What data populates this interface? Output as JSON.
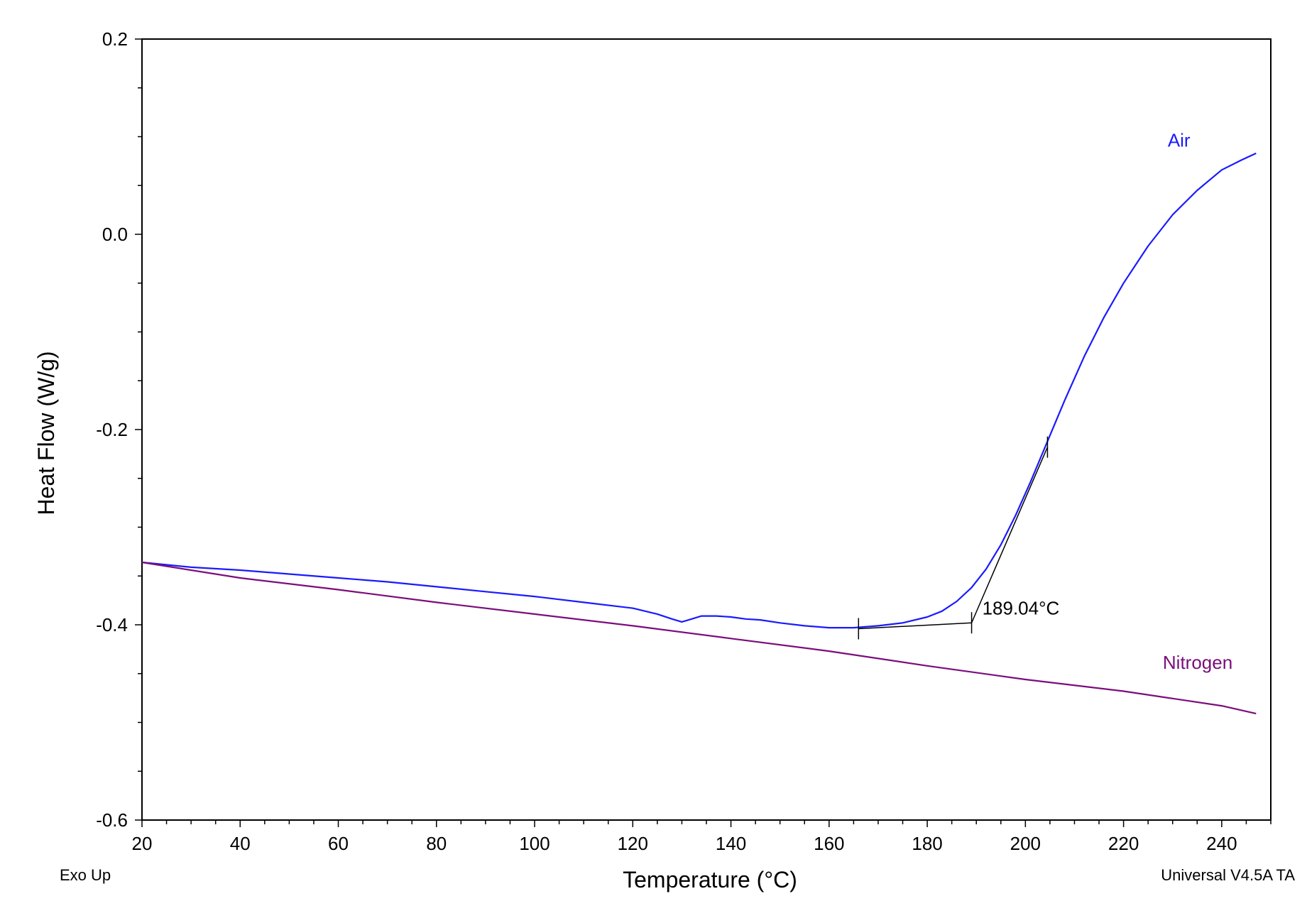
{
  "chart_data": {
    "type": "line",
    "xlabel": "Temperature (°C)",
    "ylabel": "Heat Flow (W/g)",
    "xlim": [
      20,
      250
    ],
    "ylim": [
      -0.6,
      0.2
    ],
    "x_ticks": [
      20,
      40,
      60,
      80,
      100,
      120,
      140,
      160,
      180,
      200,
      220,
      240
    ],
    "x_tick_labels": [
      "20",
      "40",
      "60",
      "80",
      "100",
      "120",
      "140",
      "160",
      "180",
      "200",
      "220",
      "240"
    ],
    "y_ticks": [
      0.2,
      0.0,
      -0.2,
      -0.4,
      -0.6
    ],
    "y_tick_labels": [
      "0.2",
      "0.0",
      "-0.2",
      "-0.4",
      "-0.6"
    ],
    "grid": false,
    "footnote_left": "Exo Up",
    "footnote_right": "Universal V4.5A TA",
    "series": [
      {
        "name": "Air",
        "color": "#1a1aff",
        "x": [
          20,
          30,
          40,
          50,
          60,
          70,
          80,
          90,
          100,
          110,
          120,
          125,
          128,
          130,
          132,
          134,
          137,
          140,
          143,
          146,
          150,
          155,
          160,
          165,
          170,
          175,
          180,
          183,
          186,
          189,
          192,
          195,
          198,
          201,
          204,
          208,
          212,
          216,
          220,
          225,
          230,
          235,
          240,
          244,
          247
        ],
        "y": [
          -0.336,
          -0.341,
          -0.344,
          -0.348,
          -0.352,
          -0.356,
          -0.361,
          -0.366,
          -0.371,
          -0.377,
          -0.383,
          -0.389,
          -0.394,
          -0.397,
          -0.394,
          -0.391,
          -0.391,
          -0.392,
          -0.394,
          -0.395,
          -0.398,
          -0.401,
          -0.403,
          -0.403,
          -0.401,
          -0.398,
          -0.392,
          -0.386,
          -0.376,
          -0.362,
          -0.343,
          -0.318,
          -0.288,
          -0.254,
          -0.218,
          -0.17,
          -0.125,
          -0.085,
          -0.05,
          -0.012,
          0.02,
          0.045,
          0.066,
          0.076,
          0.083
        ]
      },
      {
        "name": "Nitrogen",
        "color": "#7b0d7b",
        "x": [
          20,
          40,
          60,
          80,
          100,
          120,
          140,
          160,
          180,
          200,
          220,
          240,
          247
        ],
        "y": [
          -0.336,
          -0.352,
          -0.364,
          -0.377,
          -0.389,
          -0.401,
          -0.414,
          -0.427,
          -0.442,
          -0.456,
          -0.468,
          -0.483,
          -0.491
        ]
      }
    ],
    "series_labels": [
      {
        "text": "Air",
        "x": 229,
        "y": 0.09,
        "color": "#1a1aff"
      },
      {
        "text": "Nitrogen",
        "x": 228,
        "y": -0.445,
        "color": "#7b0d7b"
      }
    ],
    "annotation": {
      "text": "189.04°C",
      "onset_x": 189.04,
      "onset_y": -0.398,
      "baseline_start": [
        166,
        -0.404
      ],
      "tangent_end": [
        204.5,
        -0.218
      ],
      "markers_x": [
        166,
        189.04,
        204.5
      ],
      "markers_y": [
        -0.404,
        -0.398,
        -0.218
      ]
    }
  }
}
